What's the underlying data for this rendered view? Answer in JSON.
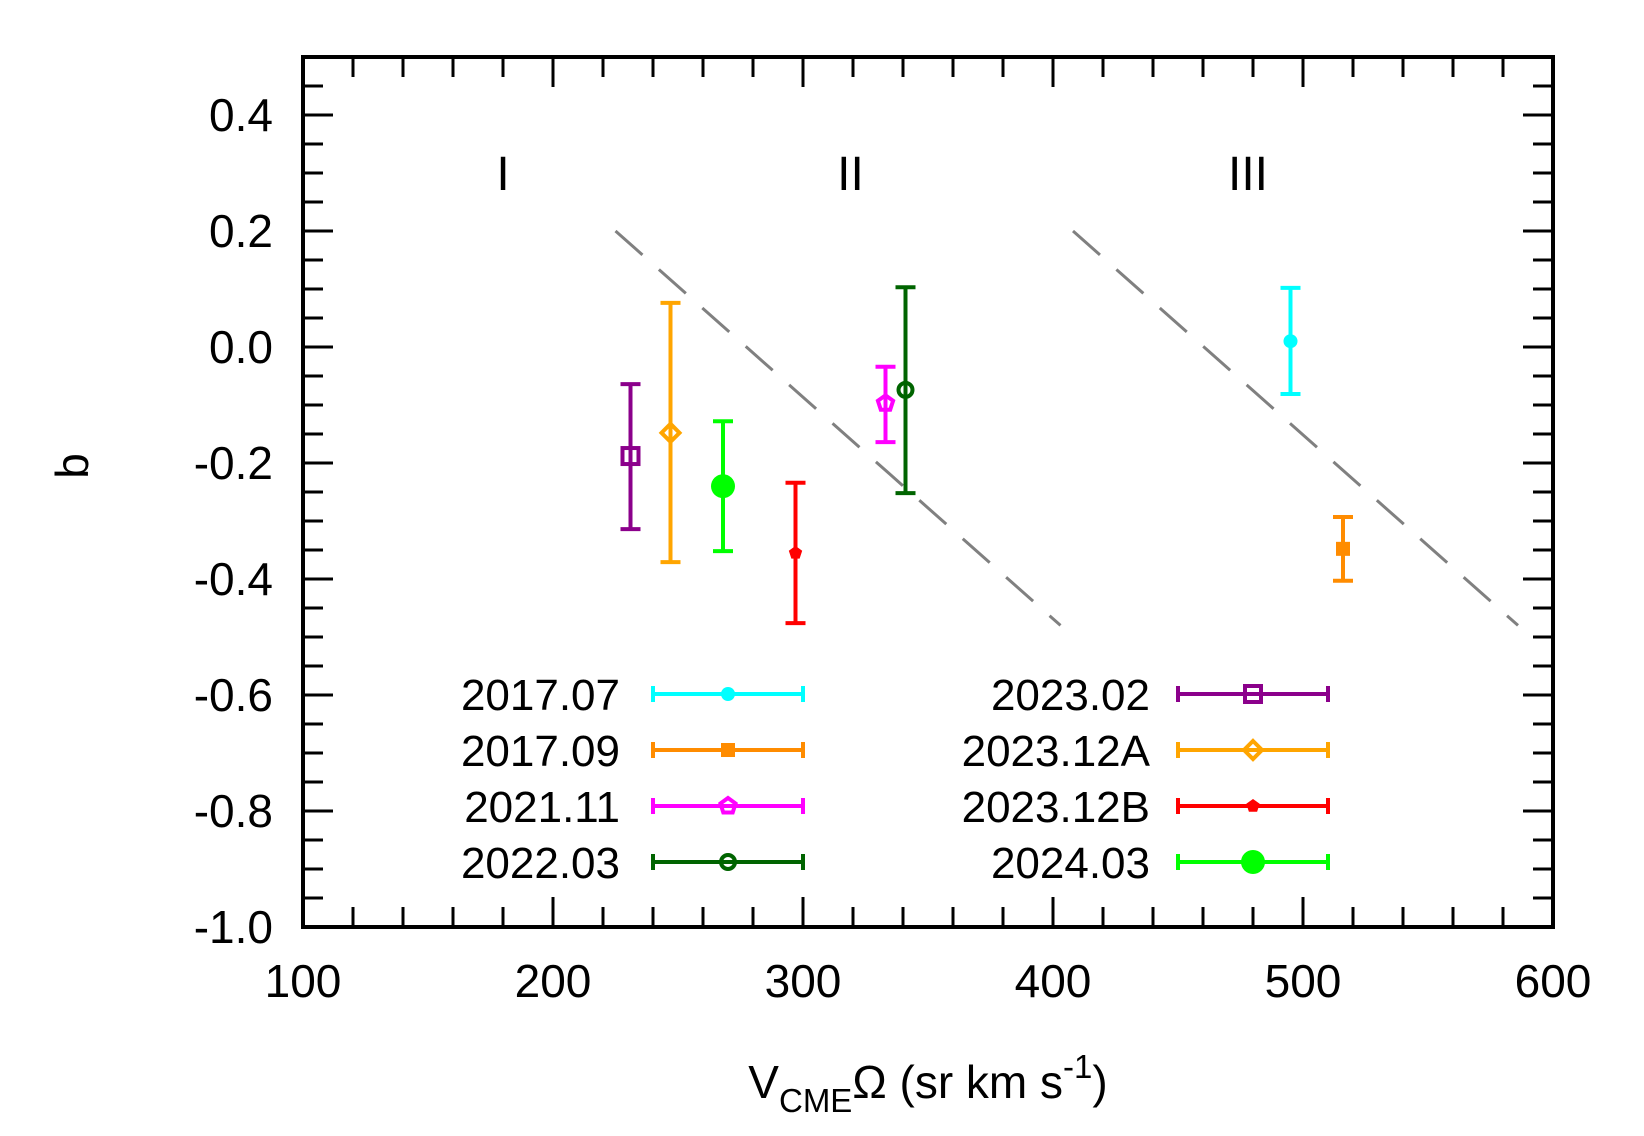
{
  "chart_data": {
    "type": "scatter",
    "title": "",
    "xlabel": {
      "main": "V",
      "sub": "CME",
      "rest": "Ω (sr km s",
      "sup": "-1",
      "close": ")"
    },
    "ylabel": "b",
    "xlim": [
      100,
      600
    ],
    "ylim": [
      -1.0,
      0.5
    ],
    "x_major_ticks": [
      100,
      200,
      300,
      400,
      500,
      600
    ],
    "x_tick_labels": [
      "100",
      "200",
      "300",
      "400",
      "500",
      "600"
    ],
    "x_minor_step": 20,
    "y_major_ticks": [
      -1.0,
      -0.8,
      -0.6,
      -0.4,
      -0.2,
      0.0,
      0.2,
      0.4
    ],
    "y_tick_labels": [
      "-1.0",
      "-0.8",
      "-0.6",
      "-0.4",
      "-0.2",
      "0.0",
      "0.2",
      "0.4"
    ],
    "y_minor_step": 0.05,
    "grid": false,
    "legend_placement": "bottom-center, two columns",
    "series": [
      {
        "name": "2017.07",
        "color": "#00ffff",
        "marker": "filled-circle-small",
        "x": 495,
        "y": 0.01,
        "yerr_low": -0.081,
        "yerr_high": 0.102
      },
      {
        "name": "2017.09",
        "color": "#ff8c00",
        "marker": "filled-square",
        "x": 516,
        "y": -0.348,
        "yerr_low": -0.403,
        "yerr_high": -0.293
      },
      {
        "name": "2021.11",
        "color": "#ff00ff",
        "marker": "open-pentagon",
        "x": 333,
        "y": -0.097,
        "yerr_low": -0.164,
        "yerr_high": -0.034
      },
      {
        "name": "2022.03",
        "color": "#006400",
        "marker": "open-circle",
        "x": 341,
        "y": -0.074,
        "yerr_low": -0.252,
        "yerr_high": 0.103
      },
      {
        "name": "2023.02",
        "color": "#8b008b",
        "marker": "open-square",
        "x": 231,
        "y": -0.188,
        "yerr_low": -0.314,
        "yerr_high": -0.064
      },
      {
        "name": "2023.12A",
        "color": "#ffa500",
        "marker": "open-diamond",
        "x": 247,
        "y": -0.148,
        "yerr_low": -0.371,
        "yerr_high": 0.076
      },
      {
        "name": "2023.12B",
        "color": "#ff0000",
        "marker": "filled-pentagon",
        "x": 297,
        "y": -0.355,
        "yerr_low": -0.476,
        "yerr_high": -0.234
      },
      {
        "name": "2024.03",
        "color": "#00ff00",
        "marker": "filled-circle-large",
        "x": 268,
        "y": -0.24,
        "yerr_low": -0.352,
        "yerr_high": -0.128
      }
    ],
    "dividers": [
      {
        "x": [
          225,
          403
        ],
        "y": [
          0.2,
          -0.48
        ],
        "style": "dashed",
        "color": "#808080"
      },
      {
        "x": [
          408,
          586
        ],
        "y": [
          0.2,
          -0.48
        ],
        "style": "dashed",
        "color": "#808080"
      }
    ],
    "annotations": [
      {
        "text": "I",
        "x": 180,
        "y": 0.3
      },
      {
        "text": "II",
        "x": 319,
        "y": 0.3
      },
      {
        "text": "III",
        "x": 478,
        "y": 0.3
      }
    ]
  }
}
